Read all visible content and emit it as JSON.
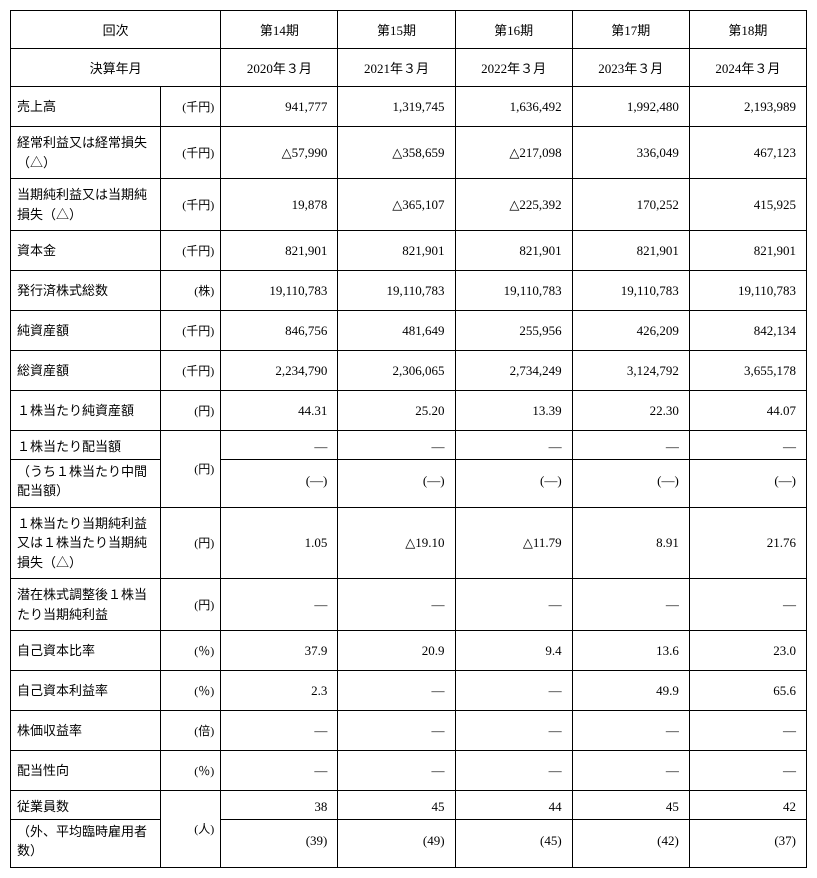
{
  "header": {
    "rowTitle": "回次",
    "periodTitle": "決算年月",
    "periods": [
      "第14期",
      "第15期",
      "第16期",
      "第17期",
      "第18期"
    ],
    "dates": [
      "2020年３月",
      "2021年３月",
      "2022年３月",
      "2023年３月",
      "2024年３月"
    ]
  },
  "rows": [
    {
      "id": "sales",
      "label": "売上高",
      "unit": "(千円)",
      "v": [
        "941,777",
        "1,319,745",
        "1,636,492",
        "1,992,480",
        "2,193,989"
      ],
      "h": "norm"
    },
    {
      "id": "ordinary-income",
      "label": "経常利益又は経常損失（△）",
      "unit": "(千円)",
      "v": [
        "△57,990",
        "△358,659",
        "△217,098",
        "336,049",
        "467,123"
      ],
      "h": "tall"
    },
    {
      "id": "net-income",
      "label": "当期純利益又は当期純損失（△）",
      "unit": "(千円)",
      "v": [
        "19,878",
        "△365,107",
        "△225,392",
        "170,252",
        "415,925"
      ],
      "h": "tall"
    },
    {
      "id": "capital",
      "label": "資本金",
      "unit": "(千円)",
      "v": [
        "821,901",
        "821,901",
        "821,901",
        "821,901",
        "821,901"
      ],
      "h": "norm"
    },
    {
      "id": "shares-issued",
      "label": "発行済株式総数",
      "unit": "(株)",
      "v": [
        "19,110,783",
        "19,110,783",
        "19,110,783",
        "19,110,783",
        "19,110,783"
      ],
      "h": "norm"
    },
    {
      "id": "net-assets",
      "label": "純資産額",
      "unit": "(千円)",
      "v": [
        "846,756",
        "481,649",
        "255,956",
        "426,209",
        "842,134"
      ],
      "h": "norm"
    },
    {
      "id": "total-assets",
      "label": "総資産額",
      "unit": "(千円)",
      "v": [
        "2,234,790",
        "2,306,065",
        "2,734,249",
        "3,124,792",
        "3,655,178"
      ],
      "h": "norm"
    },
    {
      "id": "nav-per-share",
      "label": "１株当たり純資産額",
      "unit": "(円)",
      "v": [
        "44.31",
        "25.20",
        "13.39",
        "22.30",
        "44.07"
      ],
      "h": "norm"
    }
  ],
  "dividend": {
    "labelTop": "１株当たり配当額",
    "labelBot": "（うち１株当たり中間配当額）",
    "unit": "(円)",
    "top": [
      "―",
      "―",
      "―",
      "―",
      "―"
    ],
    "bot": [
      "(―)",
      "(―)",
      "(―)",
      "(―)",
      "(―)"
    ]
  },
  "rows2": [
    {
      "id": "eps",
      "label": "１株当たり当期純利益又は１株当たり当期純損失（△）",
      "unit": "(円)",
      "v": [
        "1.05",
        "△19.10",
        "△11.79",
        "8.91",
        "21.76"
      ],
      "h": "h3"
    },
    {
      "id": "diluted-eps",
      "label": "潜在株式調整後１株当たり当期純利益",
      "unit": "(円)",
      "v": [
        "―",
        "―",
        "―",
        "―",
        "―"
      ],
      "h": "tall"
    },
    {
      "id": "equity-ratio",
      "label": "自己資本比率",
      "unit": "(％)",
      "v": [
        "37.9",
        "20.9",
        "9.4",
        "13.6",
        "23.0"
      ],
      "h": "norm"
    },
    {
      "id": "roe",
      "label": "自己資本利益率",
      "unit": "(％)",
      "v": [
        "2.3",
        "―",
        "―",
        "49.9",
        "65.6"
      ],
      "h": "norm"
    },
    {
      "id": "per",
      "label": "株価収益率",
      "unit": "(倍)",
      "v": [
        "―",
        "―",
        "―",
        "―",
        "―"
      ],
      "h": "norm"
    },
    {
      "id": "payout",
      "label": "配当性向",
      "unit": "(％)",
      "v": [
        "―",
        "―",
        "―",
        "―",
        "―"
      ],
      "h": "norm"
    }
  ],
  "employees": {
    "labelTop": "従業員数",
    "labelBot": "（外、平均臨時雇用者数）",
    "unit": "(人)",
    "top": [
      "38",
      "45",
      "44",
      "45",
      "42"
    ],
    "bot": [
      "(39)",
      "(49)",
      "(45)",
      "(42)",
      "(37)"
    ]
  }
}
